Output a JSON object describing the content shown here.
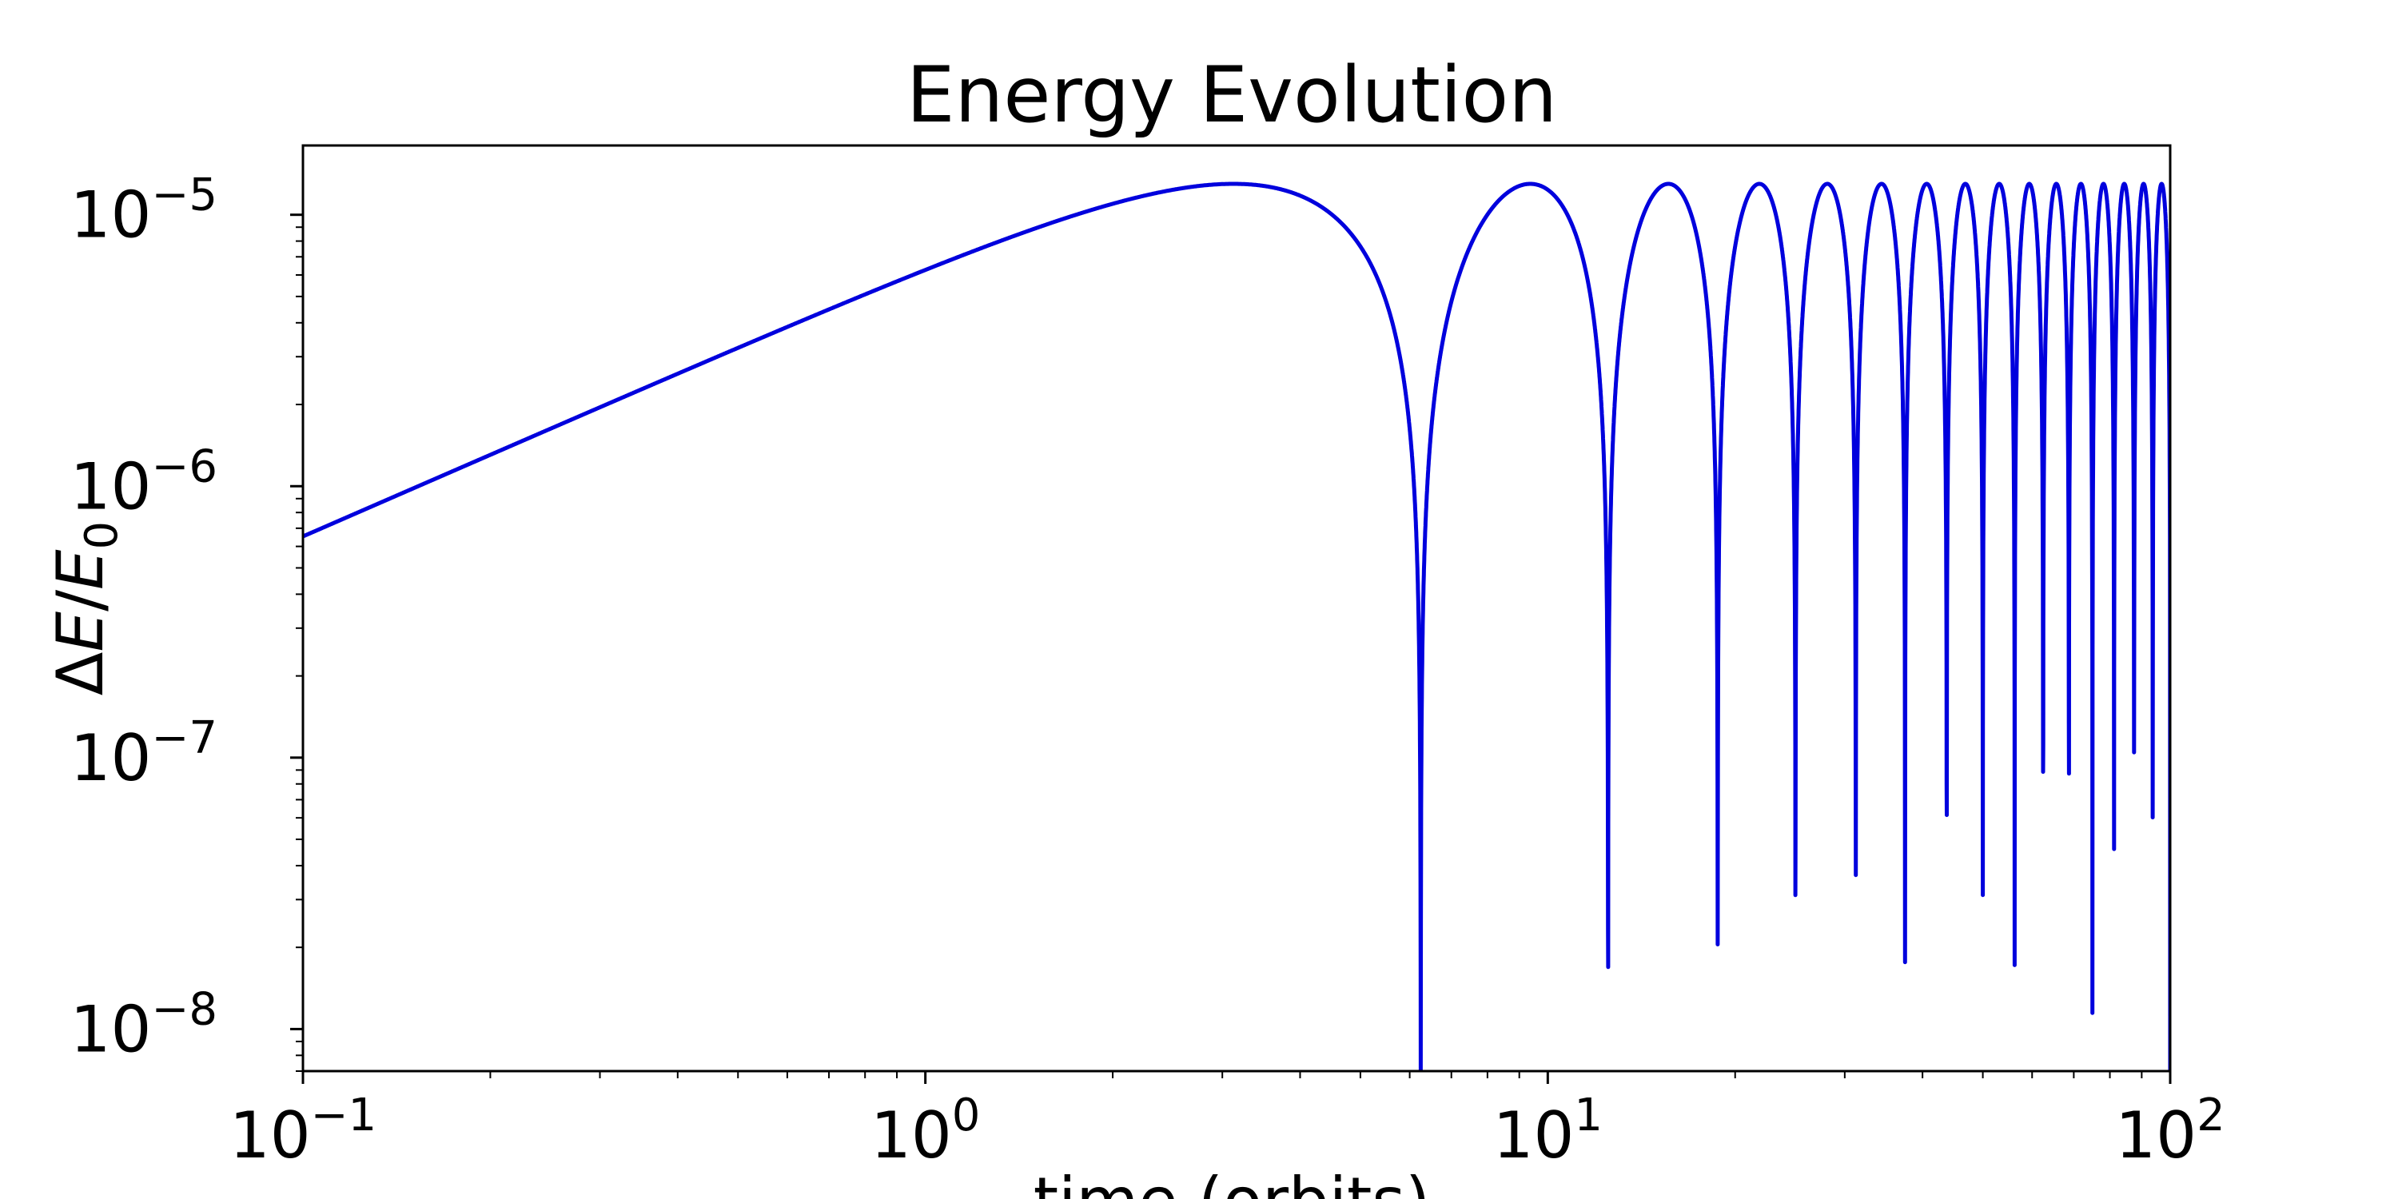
{
  "chart_data": {
    "type": "line",
    "title": "Energy Evolution",
    "xlabel": "time (orbits)",
    "ylabel": "ΔE/E0",
    "xscale": "log",
    "yscale": "log",
    "xlim": [
      0.1,
      100
    ],
    "ylim": [
      7e-09,
      1.8e-05
    ],
    "grid": false,
    "legend": "none",
    "x_ticks": [
      {
        "base": "10",
        "exp": "−1",
        "value": 0.1
      },
      {
        "base": "10",
        "exp": "0",
        "value": 1
      },
      {
        "base": "10",
        "exp": "1",
        "value": 10
      },
      {
        "base": "10",
        "exp": "2",
        "value": 100
      }
    ],
    "y_ticks": [
      {
        "base": "10",
        "exp": "−8",
        "value": 1e-08
      },
      {
        "base": "10",
        "exp": "−7",
        "value": 1e-07
      },
      {
        "base": "10",
        "exp": "−6",
        "value": 1e-06
      },
      {
        "base": "10",
        "exp": "−5",
        "value": 1e-05
      }
    ],
    "series": [
      {
        "color": "#0000dd",
        "amplitude": 1.3e-05,
        "period_orbits": 6.25,
        "x_start": 0.1,
        "x_end": 100,
        "y_floor": 7e-09
      }
    ]
  }
}
